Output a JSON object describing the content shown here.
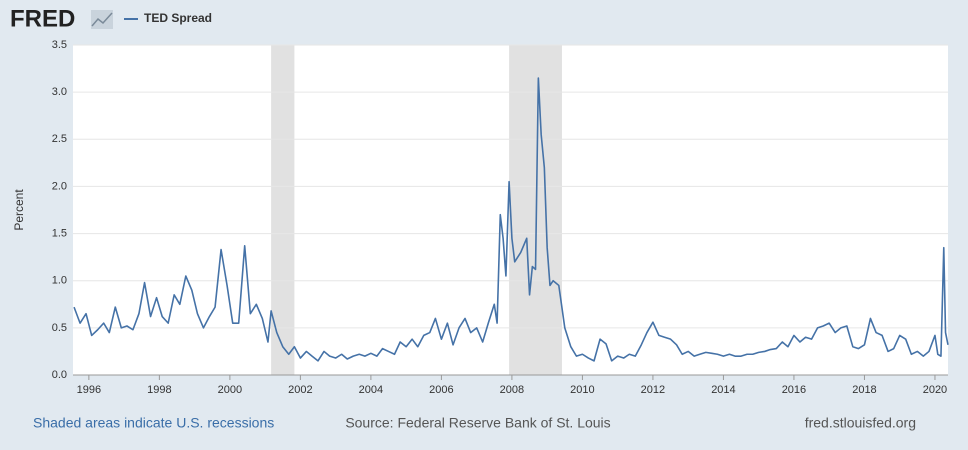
{
  "logo": "FRED",
  "footer": {
    "note": "Shaded areas indicate U.S. recessions",
    "source": "Source: Federal Reserve Bank of St. Louis",
    "site": "fred.stlouisfed.org"
  },
  "chart_data": {
    "type": "line",
    "ylabel": "Percent",
    "xlim": [
      1995.55,
      2020.37
    ],
    "ylim": [
      0,
      3.5
    ],
    "xticks": [
      1996,
      1998,
      2000,
      2002,
      2004,
      2006,
      2008,
      2010,
      2012,
      2014,
      2016,
      2018,
      2020
    ],
    "yticks": [
      {
        "value": 0,
        "label": "0.0"
      },
      0.5,
      {
        "value": 1,
        "label": "1.0"
      },
      1.5,
      {
        "value": 2,
        "label": "2.0"
      },
      2.5,
      {
        "value": 3,
        "label": "3.0"
      },
      3.5
    ],
    "grid": true,
    "recessions": [
      [
        2001.17,
        2001.83
      ],
      [
        2007.92,
        2009.42
      ]
    ],
    "x": [
      1995.58,
      1995.75,
      1995.92,
      1996.08,
      1996.25,
      1996.42,
      1996.58,
      1996.75,
      1996.92,
      1997.08,
      1997.25,
      1997.42,
      1997.58,
      1997.75,
      1997.92,
      1998.08,
      1998.25,
      1998.42,
      1998.58,
      1998.75,
      1998.92,
      1999.08,
      1999.25,
      1999.42,
      1999.58,
      1999.75,
      1999.92,
      2000.08,
      2000.25,
      2000.42,
      2000.58,
      2000.75,
      2000.92,
      2001.08,
      2001.17,
      2001.33,
      2001.5,
      2001.67,
      2001.83,
      2002.0,
      2002.17,
      2002.33,
      2002.5,
      2002.67,
      2002.83,
      2003.0,
      2003.17,
      2003.33,
      2003.5,
      2003.67,
      2003.83,
      2004.0,
      2004.17,
      2004.33,
      2004.5,
      2004.67,
      2004.83,
      2005.0,
      2005.17,
      2005.33,
      2005.5,
      2005.67,
      2005.83,
      2006.0,
      2006.17,
      2006.33,
      2006.5,
      2006.67,
      2006.83,
      2007.0,
      2007.17,
      2007.33,
      2007.5,
      2007.58,
      2007.67,
      2007.75,
      2007.83,
      2007.92,
      2008.0,
      2008.08,
      2008.25,
      2008.42,
      2008.5,
      2008.58,
      2008.67,
      2008.75,
      2008.83,
      2008.92,
      2009.0,
      2009.08,
      2009.17,
      2009.33,
      2009.5,
      2009.67,
      2009.83,
      2010.0,
      2010.17,
      2010.33,
      2010.5,
      2010.67,
      2010.83,
      2011.0,
      2011.17,
      2011.33,
      2011.5,
      2011.67,
      2011.83,
      2012.0,
      2012.17,
      2012.33,
      2012.5,
      2012.67,
      2012.83,
      2013.0,
      2013.17,
      2013.33,
      2013.5,
      2013.67,
      2013.83,
      2014.0,
      2014.17,
      2014.33,
      2014.5,
      2014.67,
      2014.83,
      2015.0,
      2015.17,
      2015.33,
      2015.5,
      2015.67,
      2015.83,
      2016.0,
      2016.17,
      2016.33,
      2016.5,
      2016.67,
      2016.83,
      2017.0,
      2017.17,
      2017.33,
      2017.5,
      2017.67,
      2017.83,
      2018.0,
      2018.17,
      2018.33,
      2018.5,
      2018.67,
      2018.83,
      2019.0,
      2019.17,
      2019.33,
      2019.5,
      2019.67,
      2019.83,
      2020.0,
      2020.08,
      2020.17,
      2020.25,
      2020.3,
      2020.37
    ],
    "series": [
      {
        "name": "TED Spread",
        "color": "#4572a7",
        "values": [
          0.72,
          0.55,
          0.65,
          0.42,
          0.48,
          0.55,
          0.45,
          0.72,
          0.5,
          0.52,
          0.48,
          0.65,
          0.98,
          0.62,
          0.82,
          0.62,
          0.55,
          0.85,
          0.75,
          1.05,
          0.9,
          0.65,
          0.5,
          0.62,
          0.72,
          1.33,
          0.95,
          0.55,
          0.55,
          1.37,
          0.65,
          0.75,
          0.6,
          0.35,
          0.68,
          0.45,
          0.3,
          0.22,
          0.3,
          0.18,
          0.25,
          0.2,
          0.15,
          0.25,
          0.2,
          0.18,
          0.22,
          0.17,
          0.2,
          0.22,
          0.2,
          0.23,
          0.2,
          0.28,
          0.25,
          0.22,
          0.35,
          0.3,
          0.38,
          0.3,
          0.42,
          0.45,
          0.6,
          0.38,
          0.55,
          0.32,
          0.5,
          0.6,
          0.45,
          0.5,
          0.35,
          0.55,
          0.75,
          0.55,
          1.7,
          1.45,
          1.05,
          2.05,
          1.45,
          1.2,
          1.3,
          1.45,
          0.85,
          1.15,
          1.12,
          3.15,
          2.55,
          2.2,
          1.35,
          0.95,
          1.0,
          0.95,
          0.5,
          0.3,
          0.2,
          0.22,
          0.18,
          0.15,
          0.38,
          0.33,
          0.15,
          0.2,
          0.18,
          0.22,
          0.2,
          0.32,
          0.45,
          0.56,
          0.42,
          0.4,
          0.38,
          0.32,
          0.22,
          0.25,
          0.2,
          0.22,
          0.24,
          0.23,
          0.22,
          0.2,
          0.22,
          0.2,
          0.2,
          0.22,
          0.22,
          0.24,
          0.25,
          0.27,
          0.28,
          0.35,
          0.3,
          0.42,
          0.35,
          0.4,
          0.38,
          0.5,
          0.52,
          0.55,
          0.45,
          0.5,
          0.52,
          0.3,
          0.28,
          0.32,
          0.6,
          0.45,
          0.42,
          0.25,
          0.28,
          0.42,
          0.38,
          0.22,
          0.25,
          0.2,
          0.25,
          0.42,
          0.22,
          0.2,
          1.35,
          0.45,
          0.32
        ]
      }
    ]
  }
}
